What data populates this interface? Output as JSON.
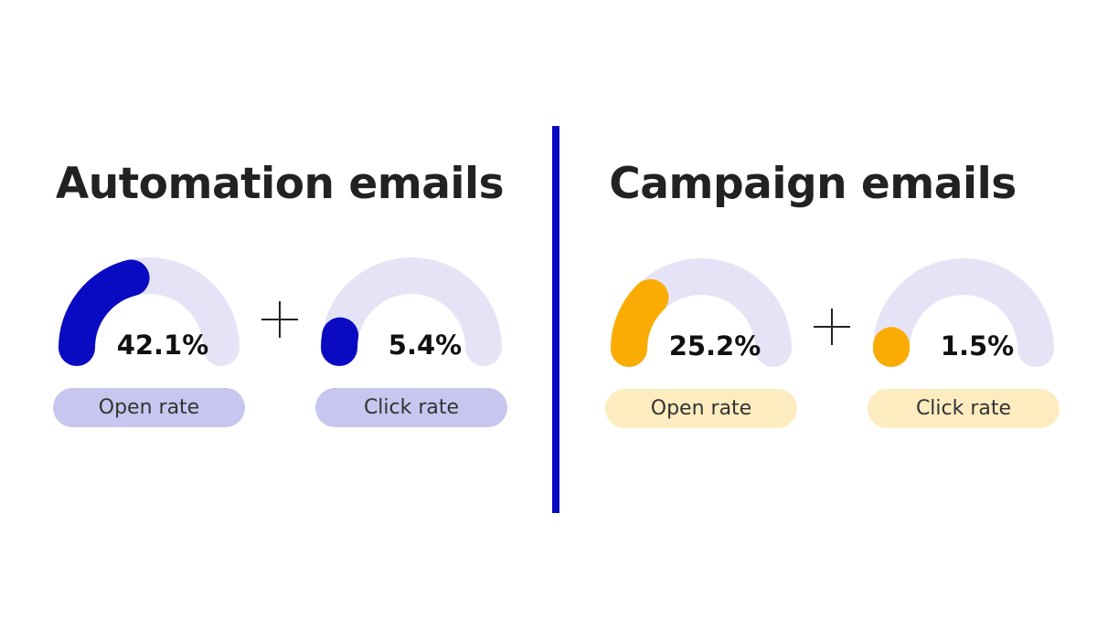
{
  "colors": {
    "automation_accent": "#0a0ac2",
    "automation_track": "#e4e4f6",
    "automation_pill": "#c7c6ef",
    "campaign_accent": "#fbac04",
    "campaign_track": "#e4e4f6",
    "campaign_pill": "#fdecc0",
    "divider": "#0a0ac2",
    "text": "#222222"
  },
  "icons": {
    "operator": "plus-icon"
  },
  "chart_data": [
    {
      "type": "gauge",
      "title": "Automation emails",
      "series": [
        {
          "name": "Open rate",
          "value": 42.1,
          "value_label": "42.1%"
        },
        {
          "name": "Click rate",
          "value": 5.4,
          "value_label": "5.4%"
        }
      ],
      "range": [
        0,
        100
      ],
      "unit": "%"
    },
    {
      "type": "gauge",
      "title": "Campaign emails",
      "series": [
        {
          "name": "Open rate",
          "value": 25.2,
          "value_label": "25.2%"
        },
        {
          "name": "Click rate",
          "value": 1.5,
          "value_label": "1.5%"
        }
      ],
      "range": [
        0,
        100
      ],
      "unit": "%"
    }
  ]
}
